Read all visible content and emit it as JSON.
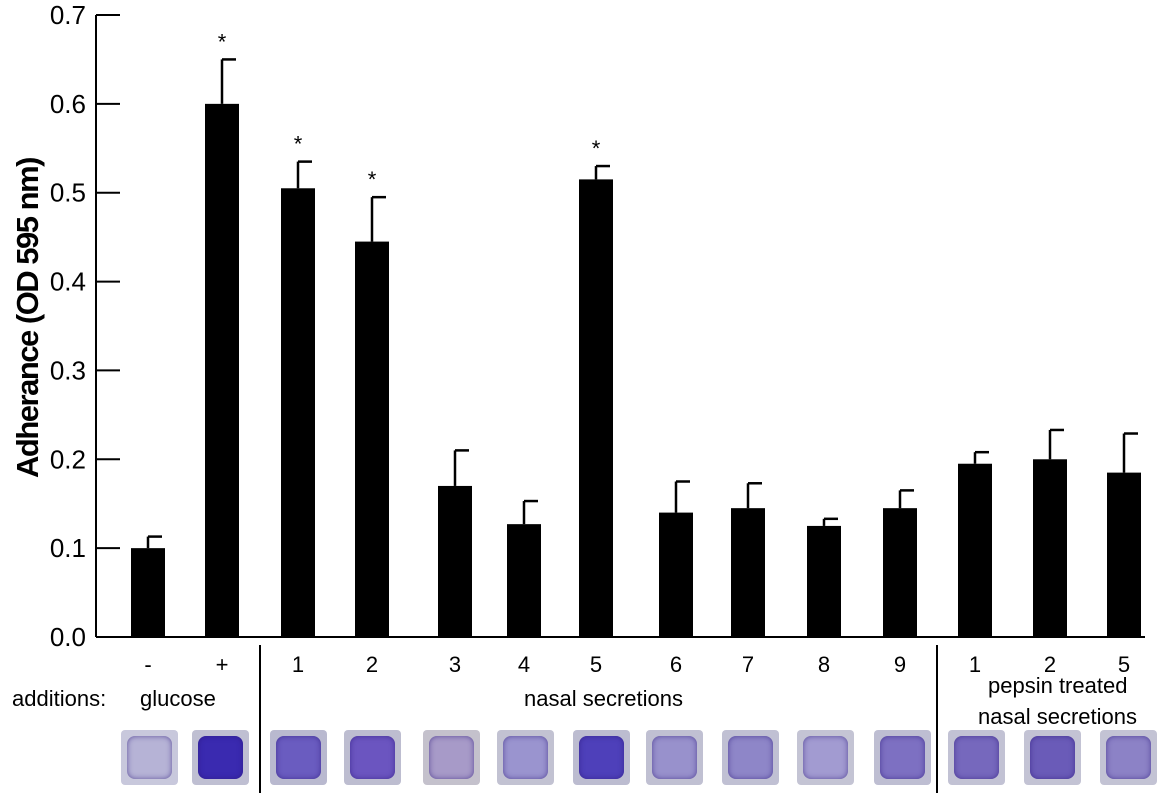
{
  "chart_data": {
    "type": "bar",
    "ylabel": "Adherance (OD 595 nm)",
    "ylim": [
      0,
      0.7
    ],
    "yticks": [
      "0.0",
      "0.1",
      "0.2",
      "0.3",
      "0.4",
      "0.5",
      "0.6",
      "0.7"
    ],
    "categories": [
      "-",
      "+",
      "1",
      "2",
      "3",
      "4",
      "5",
      "6",
      "7",
      "8",
      "9",
      "1",
      "2",
      "5"
    ],
    "values": [
      0.1,
      0.6,
      0.505,
      0.445,
      0.17,
      0.127,
      0.515,
      0.14,
      0.145,
      0.125,
      0.145,
      0.195,
      0.2,
      0.185
    ],
    "errors": [
      0.013,
      0.05,
      0.03,
      0.05,
      0.04,
      0.026,
      0.015,
      0.035,
      0.028,
      0.008,
      0.02,
      0.013,
      0.033,
      0.044
    ],
    "significance": [
      "",
      "*",
      "*",
      "*",
      "",
      "",
      "*",
      "",
      "",
      "",
      "",
      "",
      "",
      ""
    ],
    "groups": {
      "prefix": "additions:",
      "glucose": "glucose",
      "nasal": "nasal secretions",
      "pepsin_line1": "pepsin treated",
      "pepsin_line2": "nasal secretions"
    },
    "bar_color": "#000000"
  },
  "wells": [
    {
      "bg": "#c8c8dc",
      "inner": "#b6b3d6"
    },
    {
      "bg": "#bfbfd2",
      "inner": "#3a2ab0"
    },
    {
      "bg": "#b9b9cf",
      "inner": "#6a5cc0"
    },
    {
      "bg": "#bdbdd0",
      "inner": "#6b55c0"
    },
    {
      "bg": "#c4c1cc",
      "inner": "#a79ac8"
    },
    {
      "bg": "#c2c2d2",
      "inner": "#9a94cf"
    },
    {
      "bg": "#bcbcd0",
      "inner": "#4e40ba"
    },
    {
      "bg": "#c0c0d2",
      "inner": "#9891cc"
    },
    {
      "bg": "#c0c0d3",
      "inner": "#8e86c8"
    },
    {
      "bg": "#c4c4d4",
      "inner": "#a29bd1"
    },
    {
      "bg": "#bebed2",
      "inner": "#7d70c2"
    },
    {
      "bg": "#c2c2d4",
      "inner": "#7668bd"
    },
    {
      "bg": "#c3c3d4",
      "inner": "#6a5bb8"
    },
    {
      "bg": "#c3c3d4",
      "inner": "#8c82c6"
    }
  ]
}
